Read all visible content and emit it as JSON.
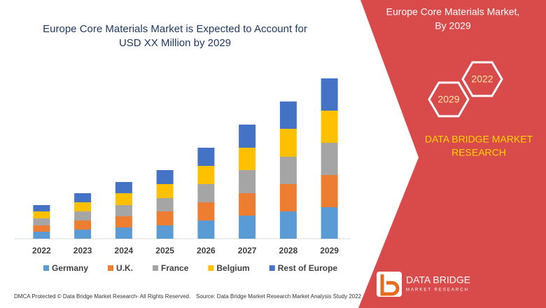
{
  "chart_data": {
    "type": "bar",
    "stacked": true,
    "title": [
      "Europe Core Materials Market is Expected to Account for",
      "USD XX Million by 2029"
    ],
    "categories": [
      "2022",
      "2023",
      "2024",
      "2025",
      "2026",
      "2027",
      "2028",
      "2029"
    ],
    "series": [
      {
        "name": "Germany",
        "color": "#5b9bd5",
        "values": [
          10,
          13,
          16,
          19,
          26,
          33,
          39,
          45
        ]
      },
      {
        "name": "U.K.",
        "color": "#ed7d31",
        "values": [
          9,
          13,
          16,
          20,
          26,
          32,
          39,
          46
        ]
      },
      {
        "name": "France",
        "color": "#a5a5a5",
        "values": [
          10,
          13,
          16,
          19,
          26,
          33,
          39,
          46
        ]
      },
      {
        "name": "Belgium",
        "color": "#ffc000",
        "values": [
          10,
          13,
          17,
          20,
          26,
          32,
          40,
          46
        ]
      },
      {
        "name": "Rest of Europe",
        "color": "#4472c4",
        "values": [
          9,
          13,
          16,
          20,
          26,
          33,
          39,
          46
        ]
      }
    ],
    "legend": "bottom"
  },
  "side_panel": {
    "title": [
      "Europe Core Materials Market,",
      "By 2029"
    ],
    "hexagons": [
      "2022",
      "2029"
    ],
    "brand": [
      "DATA BRIDGE MARKET",
      "RESEARCH"
    ]
  },
  "logo": {
    "name": "DATA BRIDGE",
    "tagline": "MARKET RESEARCH"
  },
  "footer": {
    "dmca": "DMCA Protected © Data Bridge Market Research- All Rights Reserved.",
    "source": "Source: Data Bridge Market Research Market Analysis Study 2022"
  }
}
